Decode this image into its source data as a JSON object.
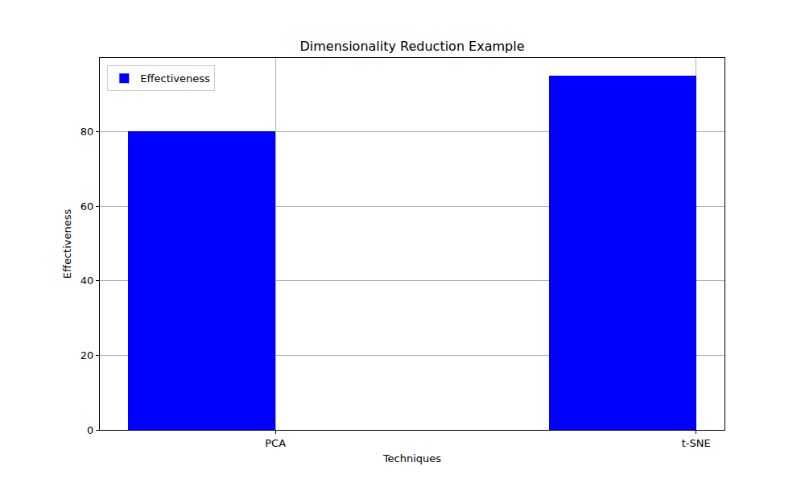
{
  "chart_data": {
    "type": "bar",
    "title": "Dimensionality Reduction Example",
    "x_label": "Techniques",
    "y_label": "Effectiveness",
    "categories": [
      "PCA",
      "t-SNE"
    ],
    "series": [
      {
        "name": "Effectiveness",
        "color": "blue",
        "values": [
          80,
          95
        ]
      }
    ],
    "ylim": [
      0,
      99.75
    ],
    "yticks": [
      0,
      20,
      40,
      60,
      80
    ],
    "grid": true,
    "legend": "upper left"
  }
}
